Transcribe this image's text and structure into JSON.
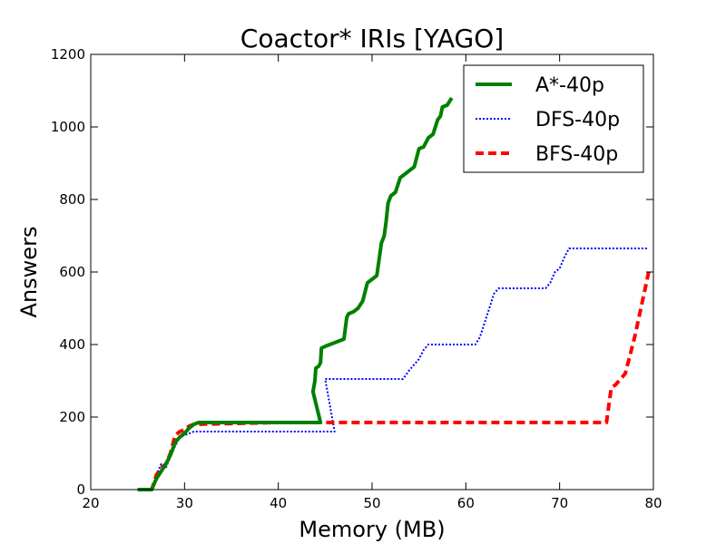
{
  "chart_data": {
    "type": "line",
    "title": "Coactor* IRIs [YAGO]",
    "xlabel": "Memory (MB)",
    "ylabel": "Answers",
    "xlim": [
      20,
      80
    ],
    "ylim": [
      0,
      1200
    ],
    "xticks": [
      20,
      30,
      40,
      50,
      60,
      70,
      80
    ],
    "yticks": [
      0,
      200,
      400,
      600,
      800,
      1000,
      1200
    ],
    "grid": false,
    "legend_position": "top-right",
    "series": [
      {
        "name": "A*-40p",
        "color": "#008000",
        "style": "solid",
        "x": [
          25.0,
          26.5,
          27.0,
          27.5,
          28.0,
          28.5,
          29.0,
          29.5,
          30.0,
          30.5,
          31.0,
          31.5,
          35.0,
          40.0,
          44.0,
          44.5,
          43.7,
          43.9,
          44.0,
          44.3,
          44.5,
          44.6,
          45.0,
          46.0,
          47.0,
          47.3,
          47.5,
          48.0,
          48.5,
          49.0,
          49.5,
          50.0,
          50.5,
          51.0,
          51.3,
          51.5,
          51.7,
          52.0,
          52.5,
          53.0,
          53.5,
          54.0,
          54.5,
          55.0,
          55.5,
          56.0,
          56.5,
          57.0,
          57.3,
          57.5,
          58.0,
          58.5
        ],
        "y": [
          0,
          0,
          30,
          50,
          70,
          95,
          130,
          145,
          155,
          170,
          180,
          185,
          185,
          185,
          185,
          185,
          270,
          300,
          335,
          340,
          350,
          390,
          395,
          405,
          415,
          475,
          485,
          490,
          500,
          520,
          570,
          580,
          590,
          680,
          700,
          740,
          790,
          810,
          820,
          860,
          870,
          880,
          890,
          940,
          945,
          970,
          980,
          1020,
          1030,
          1055,
          1060,
          1080
        ]
      },
      {
        "name": "DFS-40p",
        "color": "#0000ff",
        "style": "dotted",
        "x": [
          25.0,
          26.5,
          27.0,
          27.5,
          28.0,
          28.5,
          29.0,
          29.5,
          30.0,
          30.5,
          31.0,
          40.0,
          45.0,
          45.5,
          46.0,
          45.0,
          47.0,
          50.0,
          53.3,
          54.0,
          55.0,
          55.5,
          56.0,
          61.0,
          61.5,
          62.0,
          62.5,
          63.0,
          63.5,
          68.5,
          69.0,
          69.5,
          70.0,
          70.5,
          71.0,
          79.5
        ],
        "y": [
          0,
          0,
          40,
          70,
          60,
          90,
          120,
          145,
          150,
          155,
          160,
          160,
          160,
          160,
          160,
          305,
          305,
          305,
          305,
          330,
          360,
          385,
          400,
          400,
          420,
          460,
          500,
          540,
          555,
          555,
          570,
          600,
          610,
          640,
          665,
          665
        ]
      },
      {
        "name": "BFS-40p",
        "color": "#ff0000",
        "style": "dashed",
        "x": [
          25.0,
          26.5,
          27.0,
          27.5,
          28.0,
          28.5,
          29.0,
          29.5,
          30.0,
          30.5,
          31.0,
          40.0,
          50.0,
          60.0,
          70.0,
          75.0,
          75.5,
          76.0,
          77.0,
          77.5,
          78.0,
          78.5,
          79.0,
          79.5
        ],
        "y": [
          0,
          0,
          40,
          60,
          70,
          100,
          150,
          160,
          165,
          175,
          180,
          185,
          185,
          185,
          185,
          185,
          280,
          290,
          320,
          370,
          420,
          480,
          540,
          600
        ]
      }
    ]
  }
}
